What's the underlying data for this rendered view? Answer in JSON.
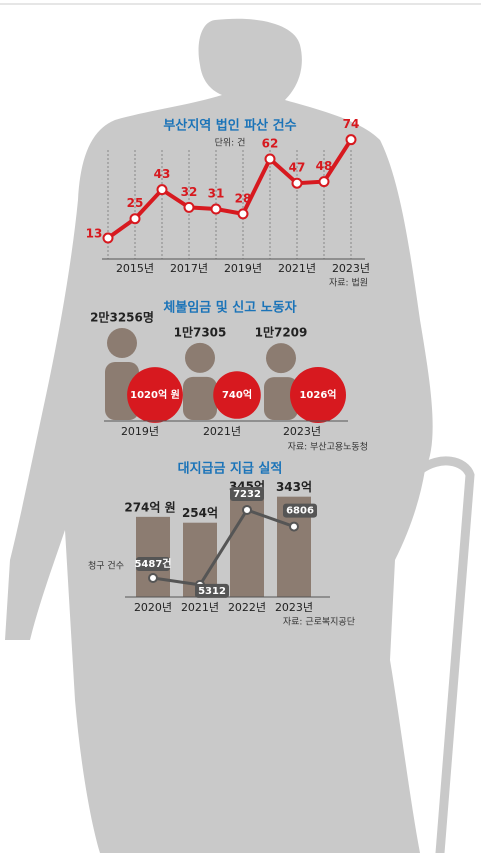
{
  "chart_data": [
    {
      "type": "line",
      "title": "부산지역 법인 파산 건수",
      "subtitle": "단위: 건",
      "categories": [
        null,
        "2015년",
        null,
        "2017년",
        null,
        "2019년",
        null,
        "2021년",
        null,
        "2023년"
      ],
      "values": [
        13,
        25,
        43,
        32,
        31,
        28,
        62,
        47,
        48,
        74
      ],
      "color": "#d7191f",
      "ylim": [
        0,
        80
      ],
      "source": "자료: 법원"
    },
    {
      "type": "pictogram",
      "title": "체불임금 및 신고 노동자",
      "categories": [
        "2019년",
        "2021년",
        "2023년"
      ],
      "series": [
        {
          "values": [
            23256,
            17305,
            17209
          ],
          "value_labels": [
            "2만3256명",
            "1만7305",
            "1만7209"
          ],
          "color": "#8c7c71"
        },
        {
          "values": [
            1020,
            740,
            1026
          ],
          "value_labels": [
            "1020억 원",
            "740억",
            "1026억"
          ],
          "color": "#d7191f"
        }
      ],
      "source": "자료: 부산고용노동청"
    },
    {
      "type": "bar-line",
      "title": "대지급금 지급 실적",
      "categories": [
        "2020년",
        "2021년",
        "2022년",
        "2023년"
      ],
      "series": [
        {
          "values": [
            274,
            254,
            345,
            343
          ],
          "value_labels": [
            "274억 원",
            "254억",
            "345억",
            "343억"
          ],
          "color": "#8c7c71"
        },
        {
          "name": "청구 건수",
          "axis": "y2",
          "values": [
            5487,
            5312,
            7232,
            6806
          ],
          "value_labels": [
            "5487건",
            "5312",
            "7232",
            "6806"
          ],
          "color": "#555555"
        }
      ],
      "ylim": [
        0,
        400
      ],
      "y2lim": [
        5000,
        8000
      ],
      "source": "자료: 근로복지공단"
    }
  ]
}
